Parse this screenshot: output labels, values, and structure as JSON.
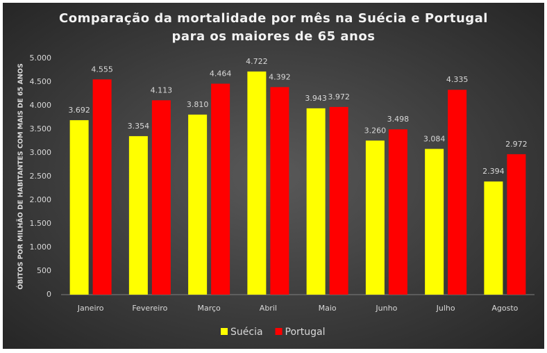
{
  "chart_data": {
    "type": "bar",
    "title": "Comparação da mortalidade por mês na Suécia e Portugal para os maiores de 65 anos",
    "y_label": "ÓBITOS POR MILHÃO DE HABITANTES COM MAIS DE 65 ANOS",
    "categories": [
      "Janeiro",
      "Fevereiro",
      "Março",
      "Abril",
      "Maio",
      "Junho",
      "Julho",
      "Agosto"
    ],
    "series": [
      {
        "name": "Suécia",
        "color": "#ffff00",
        "values": [
          3692,
          3354,
          3810,
          4722,
          3943,
          3260,
          3084,
          2394
        ],
        "value_labels": [
          "3.692",
          "3.354",
          "3.810",
          "4.722",
          "3.943",
          "3.260",
          "3.084",
          "2.394"
        ]
      },
      {
        "name": "Portugal",
        "color": "#ff0000",
        "values": [
          4555,
          4113,
          4464,
          4392,
          3972,
          3498,
          4335,
          2972
        ],
        "value_labels": [
          "4.555",
          "4.113",
          "4.464",
          "4.392",
          "3.972",
          "3.498",
          "4.335",
          "2.972"
        ]
      }
    ],
    "ylim": [
      0,
      5000
    ],
    "yticks": [
      0,
      500,
      {
        "value": 1000,
        "label": "1.000"
      },
      {
        "value": 1500,
        "label": "1.500"
      },
      {
        "value": 2000,
        "label": "2.000"
      },
      {
        "value": 2500,
        "label": "2.500"
      },
      {
        "value": 3000,
        "label": "3.000"
      },
      {
        "value": 3500,
        "label": "3.500"
      },
      {
        "value": 4000,
        "label": "4.000"
      },
      {
        "value": 4500,
        "label": "4.500"
      },
      {
        "value": 5000,
        "label": "5.000"
      }
    ],
    "grid": false,
    "legend": "bottom"
  }
}
